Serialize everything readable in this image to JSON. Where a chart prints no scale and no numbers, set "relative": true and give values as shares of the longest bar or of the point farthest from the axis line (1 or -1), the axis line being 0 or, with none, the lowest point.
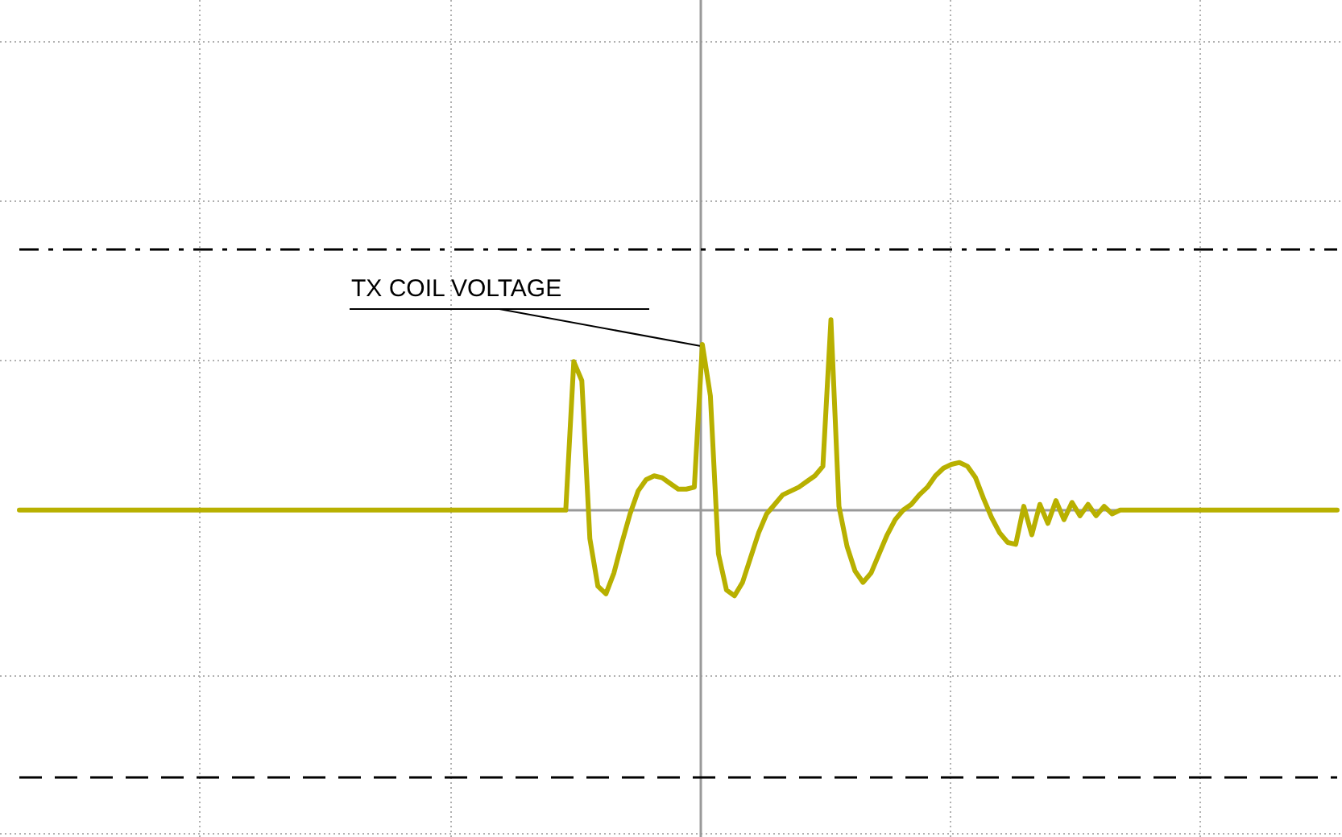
{
  "chart_data": {
    "type": "line",
    "relative": true,
    "grid": true,
    "line_style": "solid",
    "annotations": [
      "TX COIL VOLTAGE"
    ],
    "categories": [
      null,
      null,
      null,
      null,
      null,
      null,
      null,
      null,
      null,
      null,
      null,
      null,
      null,
      null,
      null,
      null,
      null,
      null,
      null,
      null,
      null,
      null,
      null,
      null,
      null,
      null,
      null,
      null,
      null,
      null,
      null,
      null,
      null,
      null,
      null,
      null,
      null,
      null,
      null,
      null,
      null,
      null,
      null,
      null,
      null,
      null,
      null,
      null,
      null,
      null,
      null,
      null,
      null,
      null,
      null,
      null,
      null,
      null,
      null,
      null,
      null,
      null,
      null,
      null,
      null,
      null,
      null,
      null,
      null,
      null,
      null,
      null,
      null,
      null,
      null,
      null,
      null,
      null,
      null,
      null,
      null,
      null,
      null,
      null,
      null,
      null,
      null,
      null,
      null,
      null,
      null,
      null,
      null,
      null,
      null,
      null,
      null,
      null,
      null,
      null,
      null,
      null,
      null,
      null,
      null,
      null,
      null,
      null,
      null,
      null,
      null,
      null,
      null,
      null,
      null,
      null,
      null,
      null,
      null,
      null,
      null,
      null,
      null,
      null,
      null,
      null,
      null,
      null,
      null,
      null,
      null,
      null,
      null,
      null,
      null,
      null,
      null,
      null,
      null,
      null,
      null,
      null,
      null,
      null,
      null,
      null,
      null,
      null,
      null,
      null,
      null,
      null,
      null,
      null,
      null,
      null,
      null,
      null,
      null,
      null,
      null,
      null,
      null,
      null,
      null
    ],
    "series": [
      {
        "color": "#b8b000",
        "values": [
          0,
          0,
          0,
          0,
          0,
          0,
          0,
          0,
          0,
          0,
          0,
          0,
          0,
          0,
          0,
          0,
          0,
          0,
          0,
          0,
          0,
          0,
          0,
          0,
          0,
          0,
          0,
          0,
          0,
          0,
          0,
          0,
          0,
          0,
          0,
          0,
          0,
          0,
          0,
          0,
          0,
          0,
          0,
          0,
          0,
          0,
          0,
          0,
          0,
          0,
          0,
          0,
          0,
          0,
          0,
          0,
          0,
          0,
          0,
          0,
          0,
          0,
          0,
          0,
          0,
          0,
          0,
          0,
          0,
          0.78,
          0.68,
          -0.15,
          -0.4,
          -0.44,
          -0.33,
          -0.17,
          -0.02,
          0.1,
          0.16,
          0.18,
          0.17,
          0.14,
          0.11,
          0.11,
          0.12,
          0.87,
          0.6,
          -0.23,
          -0.42,
          -0.45,
          -0.38,
          -0.25,
          -0.12,
          -0.02,
          0.03,
          0.08,
          0.1,
          0.12,
          0.15,
          0.18,
          0.23,
          1,
          0.02,
          -0.19,
          -0.32,
          -0.38,
          -0.33,
          -0.23,
          -0.13,
          -0.05,
          0,
          0.03,
          0.08,
          0.12,
          0.18,
          0.22,
          0.24,
          0.25,
          0.23,
          0.17,
          0.06,
          -0.04,
          -0.12,
          -0.17,
          -0.18,
          0.02,
          -0.13,
          0.03,
          -0.07,
          0.05,
          -0.05,
          0.04,
          -0.03,
          0.03,
          -0.03,
          0.02,
          -0.02,
          0,
          0,
          0,
          0,
          0,
          0,
          0,
          0,
          0,
          0,
          0,
          0,
          0,
          0,
          0,
          0,
          0,
          0,
          0,
          0,
          0,
          0,
          0,
          0,
          0,
          0,
          0,
          0
        ]
      }
    ],
    "ref_lines": [
      {
        "axis": "y",
        "value": 1.37,
        "color": "#000000",
        "line_style": "dashdot"
      },
      {
        "axis": "y",
        "value": -1.4,
        "color": "#000000",
        "line_style": "dashed"
      }
    ]
  }
}
